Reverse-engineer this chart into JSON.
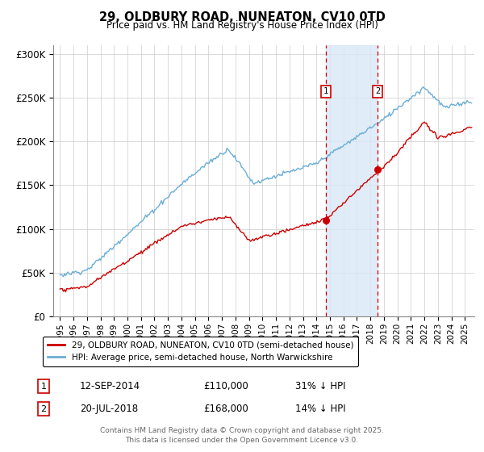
{
  "title": "29, OLDBURY ROAD, NUNEATON, CV10 0TD",
  "subtitle": "Price paid vs. HM Land Registry's House Price Index (HPI)",
  "legend_line1": "29, OLDBURY ROAD, NUNEATON, CV10 0TD (semi-detached house)",
  "legend_line2": "HPI: Average price, semi-detached house, North Warwickshire",
  "annotation1_date": "12-SEP-2014",
  "annotation1_price": "£110,000",
  "annotation1_hpi": "31% ↓ HPI",
  "annotation1_year": 2014.7,
  "annotation1_value": 110000,
  "annotation2_date": "20-JUL-2018",
  "annotation2_price": "£168,000",
  "annotation2_hpi": "14% ↓ HPI",
  "annotation2_year": 2018.55,
  "annotation2_value": 168000,
  "hpi_color": "#6baed6",
  "price_color": "#cc0000",
  "vline_color": "#cc0000",
  "shade_color": "#d9e8f5",
  "footer": "Contains HM Land Registry data © Crown copyright and database right 2025.\nThis data is licensed under the Open Government Licence v3.0.",
  "ylim": [
    0,
    310000
  ],
  "yticks": [
    0,
    50000,
    100000,
    150000,
    200000,
    250000,
    300000
  ],
  "ytick_labels": [
    "£0",
    "£50K",
    "£100K",
    "£150K",
    "£200K",
    "£250K",
    "£300K"
  ],
  "xlim_start": 1994.5,
  "xlim_end": 2025.7
}
